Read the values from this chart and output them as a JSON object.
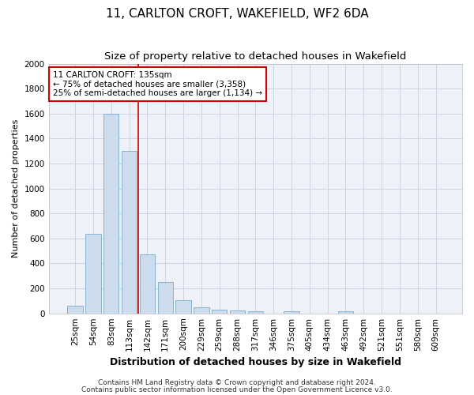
{
  "title1": "11, CARLTON CROFT, WAKEFIELD, WF2 6DA",
  "title2": "Size of property relative to detached houses in Wakefield",
  "xlabel": "Distribution of detached houses by size in Wakefield",
  "ylabel": "Number of detached properties",
  "categories": [
    "25sqm",
    "54sqm",
    "83sqm",
    "113sqm",
    "142sqm",
    "171sqm",
    "200sqm",
    "229sqm",
    "259sqm",
    "288sqm",
    "317sqm",
    "346sqm",
    "375sqm",
    "405sqm",
    "434sqm",
    "463sqm",
    "492sqm",
    "521sqm",
    "551sqm",
    "580sqm",
    "609sqm"
  ],
  "values": [
    60,
    635,
    1600,
    1300,
    475,
    250,
    105,
    50,
    30,
    25,
    15,
    0,
    15,
    0,
    0,
    15,
    0,
    0,
    0,
    0,
    0
  ],
  "bar_color": "#ccdcec",
  "bar_edge_color": "#7aaaca",
  "vline_x": 3.5,
  "vline_color": "#cc0000",
  "ylim": [
    0,
    2000
  ],
  "yticks": [
    0,
    200,
    400,
    600,
    800,
    1000,
    1200,
    1400,
    1600,
    1800,
    2000
  ],
  "annotation_text": "11 CARLTON CROFT: 135sqm\n← 75% of detached houses are smaller (3,358)\n25% of semi-detached houses are larger (1,134) →",
  "annotation_box_facecolor": "#ffffff",
  "annotation_box_edgecolor": "#cc0000",
  "footer1": "Contains HM Land Registry data © Crown copyright and database right 2024.",
  "footer2": "Contains public sector information licensed under the Open Government Licence v3.0.",
  "title1_fontsize": 11,
  "title2_fontsize": 9.5,
  "xlabel_fontsize": 9,
  "ylabel_fontsize": 8,
  "tick_fontsize": 7.5,
  "annotation_fontsize": 7.5,
  "footer_fontsize": 6.5,
  "grid_color": "#c8d4e4",
  "background_color": "#eef2f8"
}
